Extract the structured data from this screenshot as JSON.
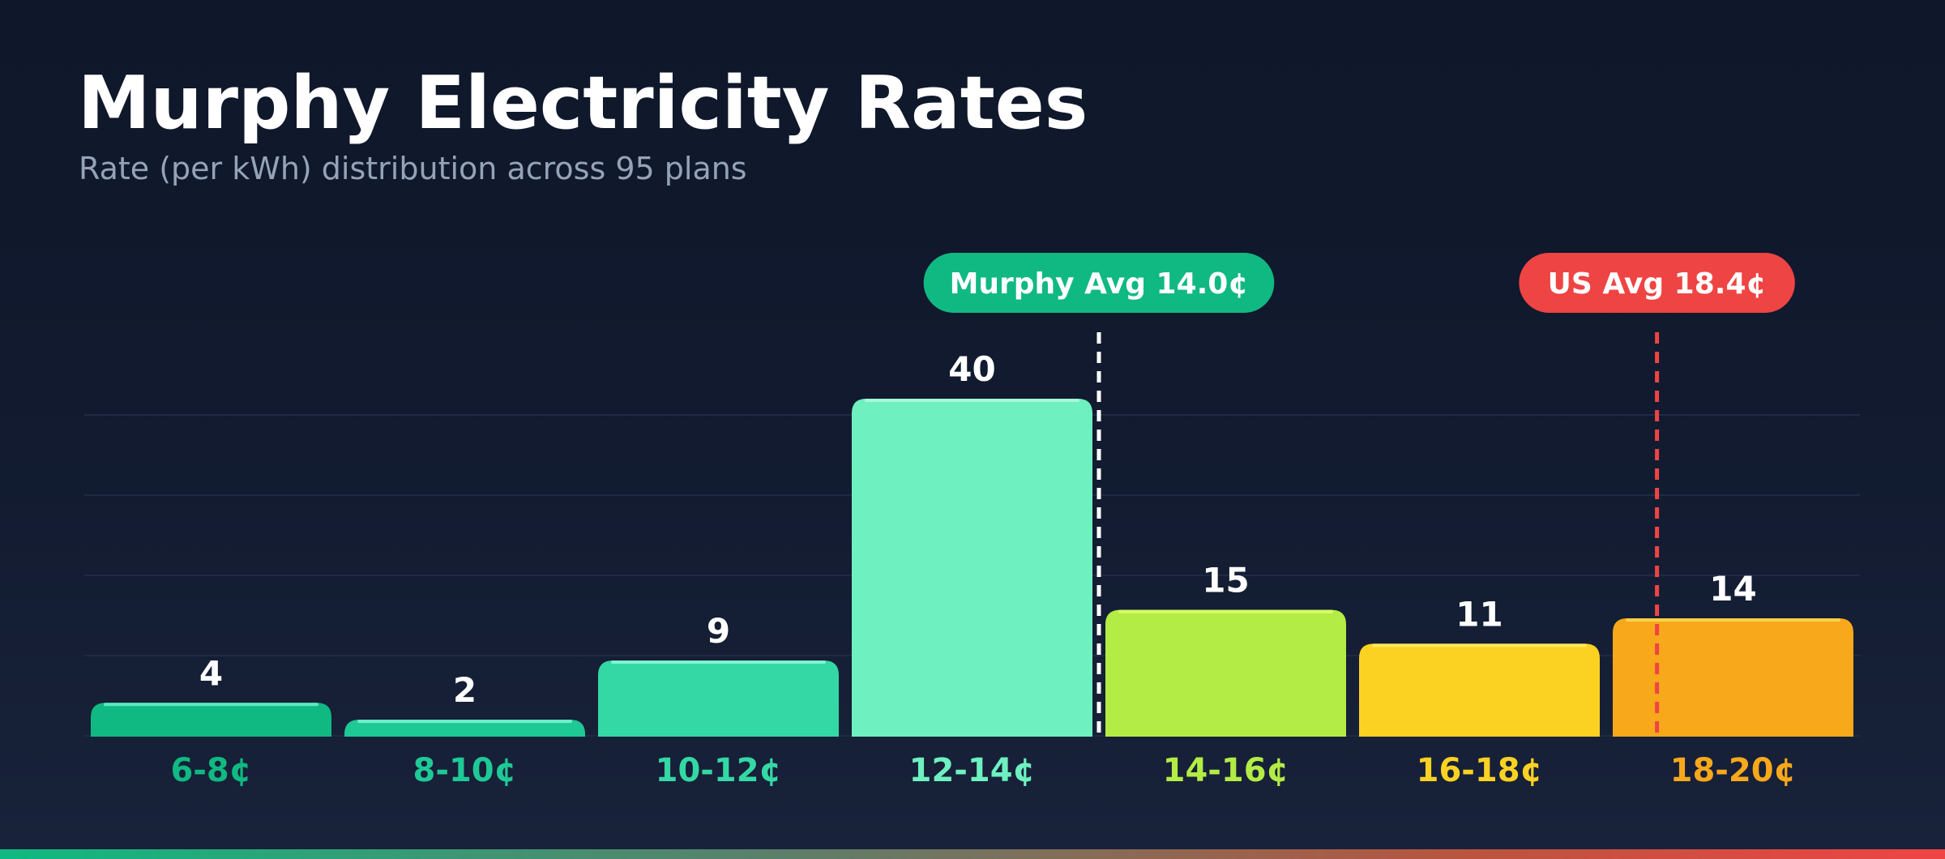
{
  "header": {
    "title": "Murphy Electricity Rates",
    "subtitle": "Rate (per kWh) distribution across 95 plans"
  },
  "chart_data": {
    "type": "bar",
    "title": "Murphy Electricity Rates",
    "subtitle": "Rate (per kWh) distribution across 95 plans",
    "xlabel": "",
    "ylabel": "",
    "categories": [
      "6-8¢",
      "8-10¢",
      "10-12¢",
      "12-14¢",
      "14-16¢",
      "16-18¢",
      "18-20¢"
    ],
    "values": [
      4,
      2,
      9,
      40,
      15,
      11,
      14
    ],
    "bar_colors": [
      "#10b981",
      "#1fc996",
      "#34d8a5",
      "#6ef0c0",
      "#b3ec44",
      "#fcd222",
      "#f8a81b"
    ],
    "highlight_colors": [
      "#5ce8c0",
      "#6ef0c8",
      "#7ff4cf",
      "#a7f8da",
      "#d8ff6a",
      "#ffeb5c",
      "#ffd04a"
    ],
    "label_colors": [
      "#10b981",
      "#1fc996",
      "#34d8a5",
      "#6ef0c0",
      "#b3ec44",
      "#fcd222",
      "#f8a81b"
    ],
    "ylim": [
      0,
      40
    ],
    "grid": true,
    "legend": "none",
    "reference_lines": [
      {
        "label": "Murphy Avg 14.0¢",
        "x": 14.0,
        "color": "#ffffff",
        "badge_color": "#10b981"
      },
      {
        "label": "US Avg 18.4¢",
        "x": 18.4,
        "color": "#ef4444",
        "badge_color": "#ef4444"
      }
    ],
    "x_range": [
      6,
      20
    ]
  }
}
